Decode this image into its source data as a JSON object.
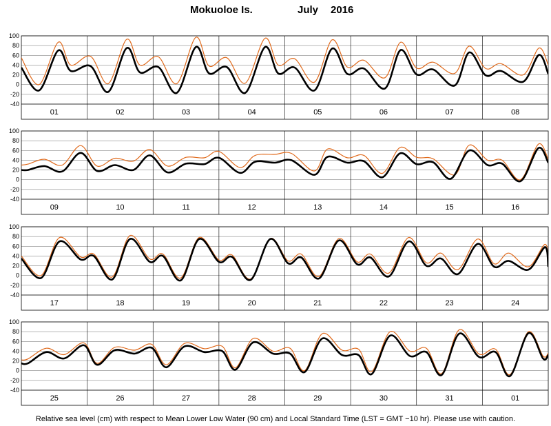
{
  "title": {
    "station": "Mokuoloe Is.",
    "month": "July",
    "year": "2016"
  },
  "footer": "Relative sea level (cm) with respect to Mean Lower Low Water (90 cm) and Local Standard Time (LST = GMT −10 hr). Please use with caution.",
  "colors": {
    "predicted": "#000000",
    "observed": "#e06a1c",
    "grid": "#888888"
  },
  "chart_data": {
    "type": "line",
    "ylim": [
      -40,
      100
    ],
    "yticks": [
      100,
      80,
      60,
      40,
      20,
      0,
      -20,
      -40
    ],
    "grid": "horizontal and daily vertical lines",
    "series_styles": [
      {
        "series": "predicted",
        "color": "#000000",
        "style": "thick"
      },
      {
        "series": "observed",
        "color": "#e06a1c",
        "style": "thin"
      }
    ],
    "panels": [
      {
        "days": [
          "01",
          "02",
          "03",
          "04",
          "05",
          "06",
          "07",
          "08"
        ],
        "predicted": {
          "x": [
            0,
            0.27,
            0.56,
            0.75,
            1.05,
            1.32,
            1.6,
            1.8,
            2.08,
            2.36,
            2.65,
            2.85,
            3.12,
            3.4,
            3.7,
            3.9,
            4.15,
            4.45,
            4.72,
            4.95,
            5.2,
            5.52,
            5.76,
            6.0,
            6.25,
            6.58,
            6.8,
            7.05,
            7.28,
            7.62,
            7.86,
            8.0
          ],
          "y": [
            35,
            -12,
            70,
            28,
            38,
            -15,
            75,
            25,
            36,
            -17,
            77,
            23,
            36,
            -17,
            77,
            23,
            35,
            -12,
            74,
            22,
            33,
            -8,
            71,
            21,
            31,
            -2,
            66,
            19,
            28,
            6,
            61,
            22
          ]
        },
        "observed": {
          "x": [
            0,
            0.27,
            0.56,
            0.75,
            1.05,
            1.32,
            1.6,
            1.8,
            2.08,
            2.36,
            2.65,
            2.85,
            3.12,
            3.4,
            3.7,
            3.9,
            4.15,
            4.45,
            4.72,
            4.95,
            5.2,
            5.52,
            5.76,
            6.0,
            6.25,
            6.58,
            6.8,
            7.05,
            7.28,
            7.62,
            7.86,
            8.0
          ],
          "y": [
            55,
            0,
            87,
            40,
            58,
            2,
            93,
            40,
            57,
            2,
            97,
            38,
            55,
            3,
            95,
            40,
            53,
            5,
            92,
            36,
            50,
            14,
            87,
            34,
            46,
            23,
            79,
            33,
            43,
            20,
            75,
            40
          ]
        }
      },
      {
        "days": [
          "09",
          "10",
          "11",
          "12",
          "13",
          "14",
          "15",
          "16"
        ],
        "predicted": {
          "x": [
            0,
            0.1,
            0.35,
            0.62,
            0.9,
            1.15,
            1.42,
            1.7,
            1.95,
            2.22,
            2.5,
            2.78,
            3.0,
            3.32,
            3.55,
            3.85,
            4.1,
            4.45,
            4.65,
            4.95,
            5.2,
            5.48,
            5.75,
            6.0,
            6.25,
            6.52,
            6.8,
            7.08,
            7.3,
            7.58,
            7.85,
            8.0
          ],
          "y": [
            20,
            20,
            28,
            17,
            55,
            18,
            30,
            20,
            50,
            15,
            33,
            32,
            45,
            14,
            37,
            35,
            40,
            10,
            47,
            35,
            38,
            5,
            54,
            32,
            36,
            2,
            60,
            30,
            33,
            -3,
            65,
            35
          ]
        },
        "observed": {
          "x": [
            0,
            0.1,
            0.35,
            0.62,
            0.9,
            1.15,
            1.42,
            1.7,
            1.95,
            2.22,
            2.5,
            2.78,
            3.0,
            3.32,
            3.55,
            3.85,
            4.1,
            4.45,
            4.65,
            4.95,
            5.2,
            5.48,
            5.75,
            6.0,
            6.25,
            6.58,
            6.8,
            7.08,
            7.3,
            7.58,
            7.85,
            8.0
          ],
          "y": [
            30,
            32,
            42,
            30,
            70,
            28,
            44,
            38,
            62,
            28,
            46,
            45,
            58,
            25,
            50,
            52,
            54,
            18,
            63,
            45,
            50,
            13,
            66,
            46,
            43,
            10,
            71,
            40,
            40,
            0,
            73,
            42
          ]
        }
      },
      {
        "days": [
          "17",
          "18",
          "19",
          "20",
          "21",
          "22",
          "23",
          "24"
        ],
        "predicted": {
          "x": [
            0,
            0.3,
            0.58,
            0.9,
            1.1,
            1.38,
            1.65,
            1.95,
            2.15,
            2.42,
            2.7,
            3.0,
            3.2,
            3.48,
            3.78,
            4.05,
            4.25,
            4.52,
            4.82,
            5.1,
            5.3,
            5.58,
            5.88,
            6.15,
            6.37,
            6.63,
            6.93,
            7.18,
            7.4,
            7.7,
            7.95,
            8.0
          ],
          "y": [
            35,
            -5,
            70,
            33,
            40,
            -8,
            75,
            28,
            40,
            -10,
            75,
            28,
            38,
            -9,
            75,
            25,
            37,
            -6,
            72,
            23,
            37,
            -2,
            70,
            20,
            35,
            3,
            65,
            18,
            30,
            12,
            58,
            18
          ]
        },
        "observed": {
          "x": [
            0,
            0.3,
            0.58,
            0.9,
            1.1,
            1.38,
            1.65,
            1.95,
            2.15,
            2.42,
            2.7,
            3.0,
            3.2,
            3.48,
            3.78,
            4.05,
            4.25,
            4.52,
            4.82,
            5.1,
            5.3,
            5.58,
            5.88,
            6.15,
            6.37,
            6.63,
            6.93,
            7.18,
            7.4,
            7.7,
            7.95,
            8.0
          ],
          "y": [
            40,
            0,
            78,
            38,
            44,
            -3,
            82,
            34,
            44,
            -5,
            78,
            32,
            42,
            -7,
            76,
            30,
            44,
            -2,
            76,
            28,
            44,
            5,
            78,
            26,
            46,
            12,
            75,
            24,
            46,
            18,
            64,
            28
          ]
        }
      },
      {
        "days": [
          "25",
          "26",
          "27",
          "28",
          "29",
          "30",
          "31",
          "01"
        ],
        "predicted": {
          "x": [
            0,
            0.1,
            0.38,
            0.65,
            0.95,
            1.15,
            1.42,
            1.72,
            1.98,
            2.2,
            2.48,
            2.78,
            3.05,
            3.25,
            3.52,
            3.82,
            4.08,
            4.3,
            4.57,
            4.87,
            5.12,
            5.32,
            5.6,
            5.9,
            6.15,
            6.38,
            6.65,
            6.95,
            7.2,
            7.42,
            7.7,
            7.92,
            8.0
          ],
          "y": [
            15,
            15,
            38,
            25,
            52,
            12,
            42,
            35,
            47,
            7,
            50,
            38,
            40,
            2,
            58,
            35,
            35,
            -3,
            66,
            32,
            32,
            -7,
            72,
            30,
            38,
            -9,
            76,
            28,
            38,
            -11,
            77,
            25,
            32
          ]
        },
        "observed": {
          "x": [
            0,
            0.1,
            0.38,
            0.65,
            0.95,
            1.15,
            1.42,
            1.72,
            1.98,
            2.2,
            2.48,
            2.78,
            3.05,
            3.25,
            3.52,
            3.82,
            4.08,
            4.3,
            4.57,
            4.87,
            5.12,
            5.32,
            5.6,
            5.9,
            6.15,
            6.38,
            6.65,
            6.95,
            7.2,
            7.42,
            7.7,
            7.92,
            8.0
          ],
          "y": [
            22,
            24,
            46,
            33,
            57,
            15,
            48,
            42,
            54,
            12,
            56,
            45,
            50,
            6,
            66,
            40,
            46,
            0,
            76,
            42,
            44,
            -2,
            80,
            40,
            46,
            -6,
            84,
            34,
            44,
            -8,
            80,
            30,
            36
          ]
        }
      }
    ]
  }
}
